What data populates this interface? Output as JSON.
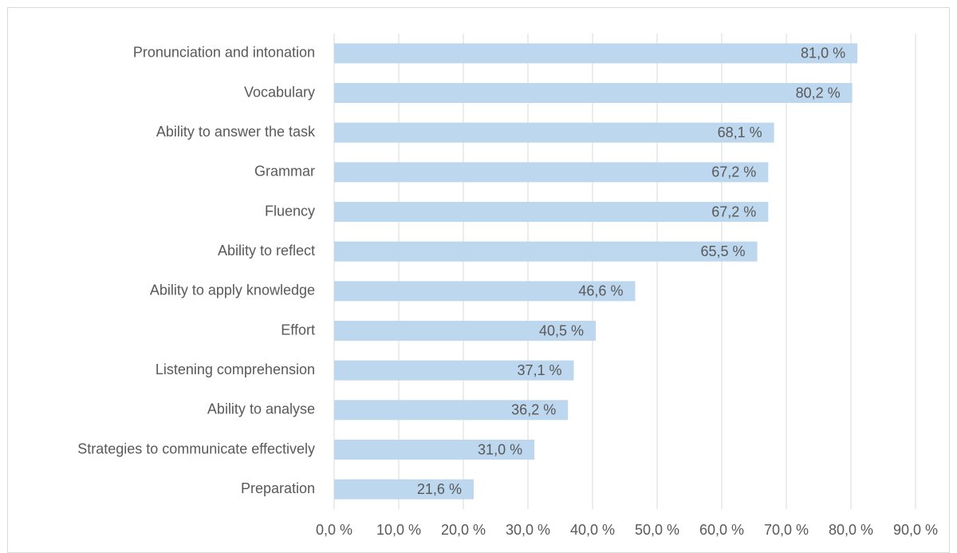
{
  "chart_data": {
    "type": "bar",
    "categories": [
      "Pronunciation and intonation",
      "Vocabulary",
      "Ability to answer the task",
      "Grammar",
      "Fluency",
      "Ability to reflect",
      "Ability to apply knowledge",
      "Effort",
      "Listening comprehension",
      "Ability to analyse",
      "Strategies to communicate effectively",
      "Preparation"
    ],
    "values": [
      81.0,
      80.2,
      68.1,
      67.2,
      67.2,
      65.5,
      46.6,
      40.5,
      37.1,
      36.2,
      31.0,
      21.6
    ],
    "value_labels": [
      "81,0 %",
      "80,2 %",
      "68,1 %",
      "67,2 %",
      "67,2 %",
      "65,5 %",
      "46,6 %",
      "40,5 %",
      "37,1 %",
      "36,2 %",
      "31,0 %",
      "21,6 %"
    ],
    "color": "#bdd7ee",
    "xlim": [
      0,
      90
    ],
    "xticks": [
      {
        "value": 0,
        "label": "0,0 %"
      },
      {
        "value": 10,
        "label": "10,0 %"
      },
      {
        "value": 20,
        "label": "20,0 %"
      },
      {
        "value": 30,
        "label": "30,0 %"
      },
      {
        "value": 40,
        "label": "40,0 %"
      },
      {
        "value": 50,
        "label": "50,0 %"
      },
      {
        "value": 60,
        "label": "60,0 %"
      },
      {
        "value": 70,
        "label": "70,0 %"
      },
      {
        "value": 80,
        "label": "80,0 %"
      },
      {
        "value": 90,
        "label": "90,0 %"
      }
    ],
    "grid": true
  }
}
